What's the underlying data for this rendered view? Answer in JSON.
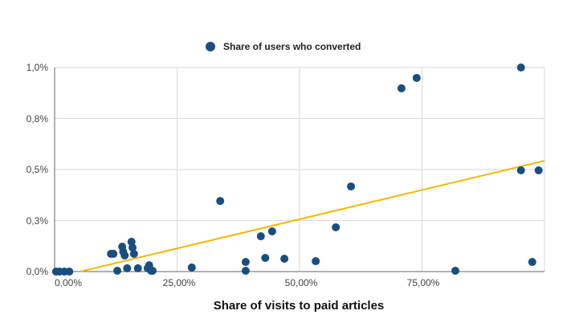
{
  "chart_data": {
    "type": "scatter",
    "title": "",
    "legend": [
      {
        "label": "Share of users who converted",
        "color": "#1a4e80",
        "marker": "circle"
      }
    ],
    "legend_position": "top",
    "xlabel": "Share of visits to paid articles",
    "ylabel": "",
    "xlim": [
      0,
      100
    ],
    "ylim": [
      0,
      1.0
    ],
    "x_ticks": [
      "0,00%",
      "25,00%",
      "50,00%",
      "75,00%"
    ],
    "y_ticks": [
      "0,0%",
      "0,3%",
      "0,5%",
      "0,8%",
      "1,0%"
    ],
    "grid": true,
    "series": [
      {
        "name": "Share of users who converted",
        "color": "#1a4e80",
        "points": [
          [
            0.3,
            0.0
          ],
          [
            1.0,
            0.0
          ],
          [
            2.0,
            0.0
          ],
          [
            3.0,
            0.0
          ],
          [
            11.5,
            0.087
          ],
          [
            12.0,
            0.087
          ],
          [
            12.8,
            0.004
          ],
          [
            13.8,
            0.122
          ],
          [
            14.0,
            0.098
          ],
          [
            14.3,
            0.079
          ],
          [
            14.8,
            0.016
          ],
          [
            15.7,
            0.146
          ],
          [
            15.9,
            0.118
          ],
          [
            16.2,
            0.087
          ],
          [
            17.0,
            0.016
          ],
          [
            19.0,
            0.016
          ],
          [
            19.3,
            0.031
          ],
          [
            19.7,
            0.004
          ],
          [
            20.0,
            0.004
          ],
          [
            28.0,
            0.02
          ],
          [
            33.8,
            0.346
          ],
          [
            39.0,
            0.047
          ],
          [
            39.0,
            0.004
          ],
          [
            42.1,
            0.173
          ],
          [
            43.0,
            0.067
          ],
          [
            44.4,
            0.197
          ],
          [
            46.9,
            0.063
          ],
          [
            53.3,
            0.051
          ],
          [
            57.4,
            0.217
          ],
          [
            60.5,
            0.417
          ],
          [
            70.8,
            0.898
          ],
          [
            73.9,
            0.949
          ],
          [
            81.8,
            0.004
          ],
          [
            95.2,
            1.0
          ],
          [
            95.2,
            0.496
          ],
          [
            97.5,
            0.047
          ],
          [
            98.8,
            0.496
          ]
        ]
      }
    ],
    "trendline": {
      "type": "linear",
      "color": "#f5b800",
      "from": [
        5.2,
        0.0
      ],
      "to": [
        100,
        0.543
      ]
    }
  },
  "legend": {
    "label": "Share of users who converted"
  },
  "axes": {
    "x_title": "Share of visits to paid articles",
    "x_ticks": [
      "0,00%",
      "25,00%",
      "50,00%",
      "75,00%"
    ],
    "y_ticks": [
      "0,0%",
      "0,3%",
      "0,5%",
      "0,8%",
      "1,0%"
    ]
  }
}
